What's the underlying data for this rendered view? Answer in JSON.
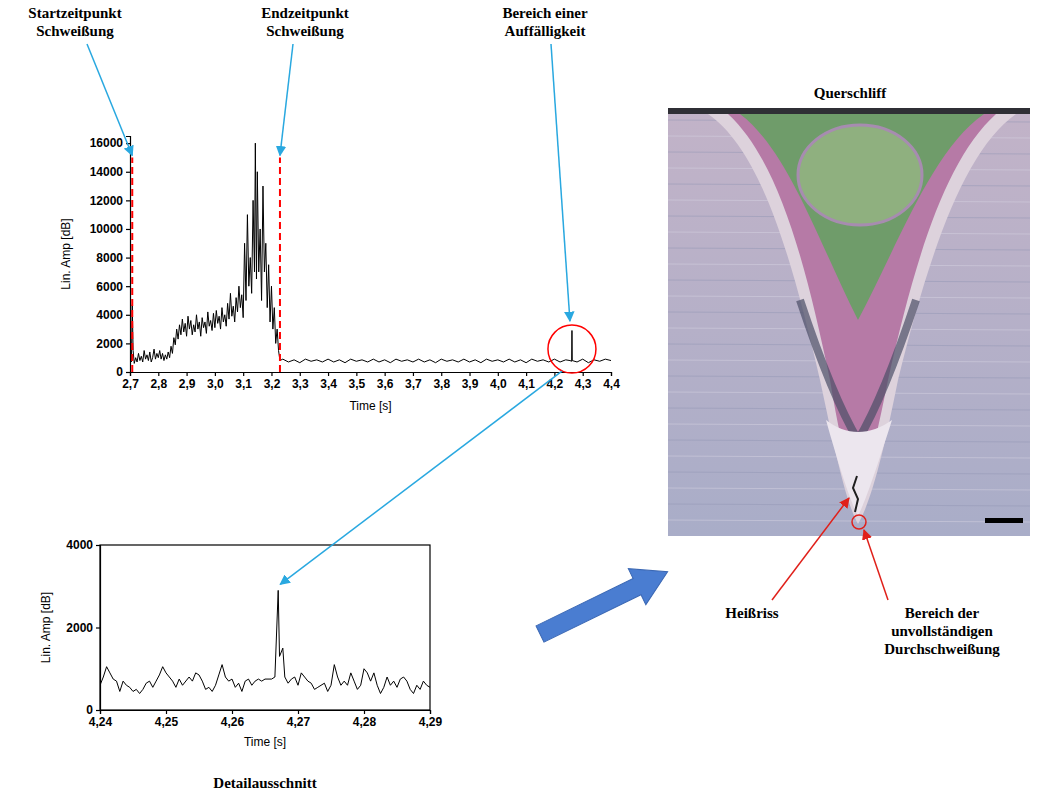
{
  "chart_data": [
    {
      "type": "line",
      "x_label": "Time [s]",
      "y_label": "Lin. Amp [dB]",
      "xlim": [
        2.7,
        4.4
      ],
      "ylim": [
        0,
        16500
      ],
      "xticks": [
        {
          "value": 2.7,
          "label": "2,7"
        },
        {
          "value": 2.8,
          "label": "2,8"
        },
        {
          "value": 2.9,
          "label": "2,9"
        },
        {
          "value": 3.0,
          "label": "3,0"
        },
        {
          "value": 3.1,
          "label": "3,1"
        },
        {
          "value": 3.2,
          "label": "3,2"
        },
        {
          "value": 3.3,
          "label": "3,3"
        },
        {
          "value": 3.4,
          "label": "3,4"
        },
        {
          "value": 3.5,
          "label": "3,5"
        },
        {
          "value": 3.6,
          "label": "3,6"
        },
        {
          "value": 3.7,
          "label": "3,7"
        },
        {
          "value": 3.8,
          "label": "3,8"
        },
        {
          "value": 3.9,
          "label": "3,9"
        },
        {
          "value": 4.0,
          "label": "4,0"
        },
        {
          "value": 4.1,
          "label": "4,1"
        },
        {
          "value": 4.2,
          "label": "4,2"
        },
        {
          "value": 4.3,
          "label": "4,3"
        },
        {
          "value": 4.4,
          "label": "4,4"
        }
      ],
      "yticks": [
        0,
        2000,
        4000,
        6000,
        8000,
        10000,
        12000,
        14000,
        16000
      ],
      "color": "#000000",
      "x": [
        2.7,
        2.705,
        2.708,
        2.711,
        2.715,
        2.72,
        2.725,
        2.73,
        2.735,
        2.74,
        2.745,
        2.75,
        2.755,
        2.76,
        2.765,
        2.77,
        2.775,
        2.78,
        2.785,
        2.79,
        2.795,
        2.8,
        2.805,
        2.81,
        2.815,
        2.82,
        2.825,
        2.83,
        2.835,
        2.84,
        2.845,
        2.85,
        2.855,
        2.86,
        2.865,
        2.87,
        2.875,
        2.88,
        2.885,
        2.89,
        2.895,
        2.9,
        2.905,
        2.91,
        2.915,
        2.92,
        2.925,
        2.93,
        2.935,
        2.94,
        2.945,
        2.95,
        2.955,
        2.96,
        2.965,
        2.97,
        2.975,
        2.98,
        2.985,
        2.99,
        2.995,
        3.0,
        3.005,
        3.01,
        3.015,
        3.02,
        3.025,
        3.03,
        3.035,
        3.04,
        3.045,
        3.05,
        3.055,
        3.06,
        3.065,
        3.07,
        3.075,
        3.08,
        3.085,
        3.09,
        3.095,
        3.1,
        3.105,
        3.11,
        3.115,
        3.12,
        3.125,
        3.13,
        3.135,
        3.14,
        3.143,
        3.147,
        3.15,
        3.155,
        3.16,
        3.165,
        3.17,
        3.175,
        3.18,
        3.185,
        3.19,
        3.195,
        3.2,
        3.205,
        3.21,
        3.215,
        3.22,
        3.225,
        3.23,
        3.24,
        3.26,
        3.28,
        3.3,
        3.32,
        3.34,
        3.36,
        3.38,
        3.4,
        3.42,
        3.44,
        3.46,
        3.48,
        3.5,
        3.52,
        3.54,
        3.56,
        3.58,
        3.6,
        3.62,
        3.64,
        3.66,
        3.68,
        3.7,
        3.72,
        3.74,
        3.76,
        3.78,
        3.8,
        3.82,
        3.84,
        3.86,
        3.88,
        3.9,
        3.92,
        3.94,
        3.96,
        3.98,
        4.0,
        4.02,
        4.04,
        4.06,
        4.08,
        4.1,
        4.12,
        4.14,
        4.16,
        4.18,
        4.2,
        4.22,
        4.24,
        4.255,
        4.261,
        4.262,
        4.263,
        4.28,
        4.3,
        4.32,
        4.34,
        4.36,
        4.38,
        4.4
      ],
      "values": [
        800,
        700,
        4700,
        1500,
        600,
        1000,
        700,
        1300,
        800,
        1100,
        700,
        1500,
        900,
        1200,
        800,
        1400,
        700,
        1000,
        1600,
        900,
        1300,
        1000,
        1500,
        900,
        1300,
        800,
        1200,
        900,
        1400,
        1000,
        1800,
        1300,
        2400,
        1900,
        3000,
        2300,
        3300,
        2600,
        3700,
        2800,
        3400,
        2500,
        3900,
        3000,
        3600,
        2600,
        3300,
        2800,
        4000,
        3000,
        3500,
        2500,
        3800,
        3100,
        3500,
        2700,
        4200,
        3200,
        3600,
        2900,
        4100,
        3100,
        4300,
        3400,
        3900,
        3000,
        4500,
        3500,
        4000,
        3200,
        4800,
        3700,
        5500,
        3900,
        4600,
        3500,
        5200,
        4200,
        6000,
        4500,
        5400,
        3800,
        9000,
        5000,
        11000,
        6000,
        8000,
        5500,
        12000,
        7000,
        16000,
        6500,
        14000,
        7000,
        10000,
        5000,
        13000,
        7000,
        9000,
        4500,
        7500,
        3500,
        6000,
        3000,
        4500,
        2000,
        3000,
        1500,
        800,
        900,
        700,
        850,
        650,
        900,
        750,
        850,
        700,
        900,
        700,
        850,
        650,
        900,
        750,
        850,
        700,
        900,
        700,
        850,
        650,
        900,
        750,
        850,
        700,
        900,
        700,
        850,
        650,
        900,
        750,
        850,
        700,
        900,
        700,
        850,
        650,
        900,
        750,
        850,
        700,
        900,
        700,
        850,
        650,
        900,
        750,
        850,
        700,
        900,
        700,
        850,
        800,
        750,
        2900,
        800,
        700,
        900,
        650,
        850,
        750,
        900,
        800
      ],
      "annotations": [
        {
          "text": "Startzeitpunkt Schweißung",
          "x": 2.708,
          "y": 15000,
          "line_style": "dashed",
          "color": "#ff0000"
        },
        {
          "text": "Endzeitpunkt Schweißung",
          "x": 3.23,
          "y": 15000,
          "line_style": "dashed",
          "color": "#ff0000"
        },
        {
          "text": "Bereich einer Auffälligkeit",
          "x": 4.262,
          "y": 1600,
          "marker": "circle",
          "color": "#ff0000"
        }
      ]
    },
    {
      "type": "line",
      "title": "Detailausschnitt",
      "x_label": "Time [s]",
      "y_label": "Lin. Amp [dB]",
      "xlim": [
        4.24,
        4.29
      ],
      "ylim": [
        0,
        4000
      ],
      "xticks": [
        {
          "value": 4.24,
          "label": "4,24"
        },
        {
          "value": 4.25,
          "label": "4,25"
        },
        {
          "value": 4.26,
          "label": "4,26"
        },
        {
          "value": 4.27,
          "label": "4,27"
        },
        {
          "value": 4.28,
          "label": "4,28"
        },
        {
          "value": 4.29,
          "label": "4,29"
        }
      ],
      "yticks": [
        0,
        2000,
        4000
      ],
      "color": "#000000",
      "x": [
        4.24,
        4.2405,
        4.241,
        4.2415,
        4.242,
        4.2425,
        4.243,
        4.2435,
        4.244,
        4.2445,
        4.245,
        4.2455,
        4.246,
        4.2465,
        4.247,
        4.2475,
        4.248,
        4.2485,
        4.249,
        4.2495,
        4.25,
        4.2505,
        4.251,
        4.2515,
        4.252,
        4.2525,
        4.2535,
        4.254,
        4.2545,
        4.255,
        4.2555,
        4.256,
        4.2565,
        4.257,
        4.2575,
        4.258,
        4.2585,
        4.259,
        4.2595,
        4.26,
        4.2605,
        4.261,
        4.2615,
        4.262,
        4.2625,
        4.263,
        4.2635,
        4.264,
        4.2645,
        4.265,
        4.266,
        4.2665,
        4.267,
        4.2672,
        4.2677,
        4.268,
        4.2685,
        4.269,
        4.2695,
        4.27,
        4.2705,
        4.271,
        4.2715,
        4.272,
        4.2725,
        4.273,
        4.274,
        4.2745,
        4.275,
        4.2755,
        4.276,
        4.2765,
        4.277,
        4.2775,
        4.278,
        4.2785,
        4.279,
        4.2795,
        4.28,
        4.2805,
        4.281,
        4.2815,
        4.282,
        4.2825,
        4.283,
        4.2835,
        4.284,
        4.2845,
        4.285,
        4.2855,
        4.286,
        4.2865,
        4.287,
        4.2875,
        4.288,
        4.2885,
        4.289,
        4.2895,
        4.29
      ],
      "values": [
        600,
        800,
        1050,
        900,
        750,
        700,
        450,
        700,
        600,
        550,
        450,
        500,
        400,
        500,
        650,
        700,
        550,
        700,
        850,
        1050,
        900,
        800,
        700,
        550,
        750,
        600,
        800,
        700,
        900,
        850,
        700,
        500,
        550,
        450,
        600,
        850,
        1100,
        800,
        700,
        750,
        550,
        650,
        450,
        700,
        750,
        600,
        700,
        750,
        700,
        750,
        750,
        800,
        2900,
        1300,
        1500,
        800,
        650,
        750,
        800,
        600,
        900,
        800,
        700,
        650,
        500,
        550,
        650,
        450,
        600,
        1100,
        800,
        600,
        700,
        600,
        900,
        700,
        500,
        600,
        1000,
        900,
        700,
        900,
        600,
        400,
        550,
        800,
        600,
        700,
        550,
        750,
        800,
        700,
        500,
        400,
        600,
        500,
        700,
        600,
        550
      ]
    }
  ],
  "micrograph": {
    "title": "Querschliff",
    "labels": [
      "Heißriss",
      "Bereich der unvollständigen Durchschweißung"
    ]
  }
}
